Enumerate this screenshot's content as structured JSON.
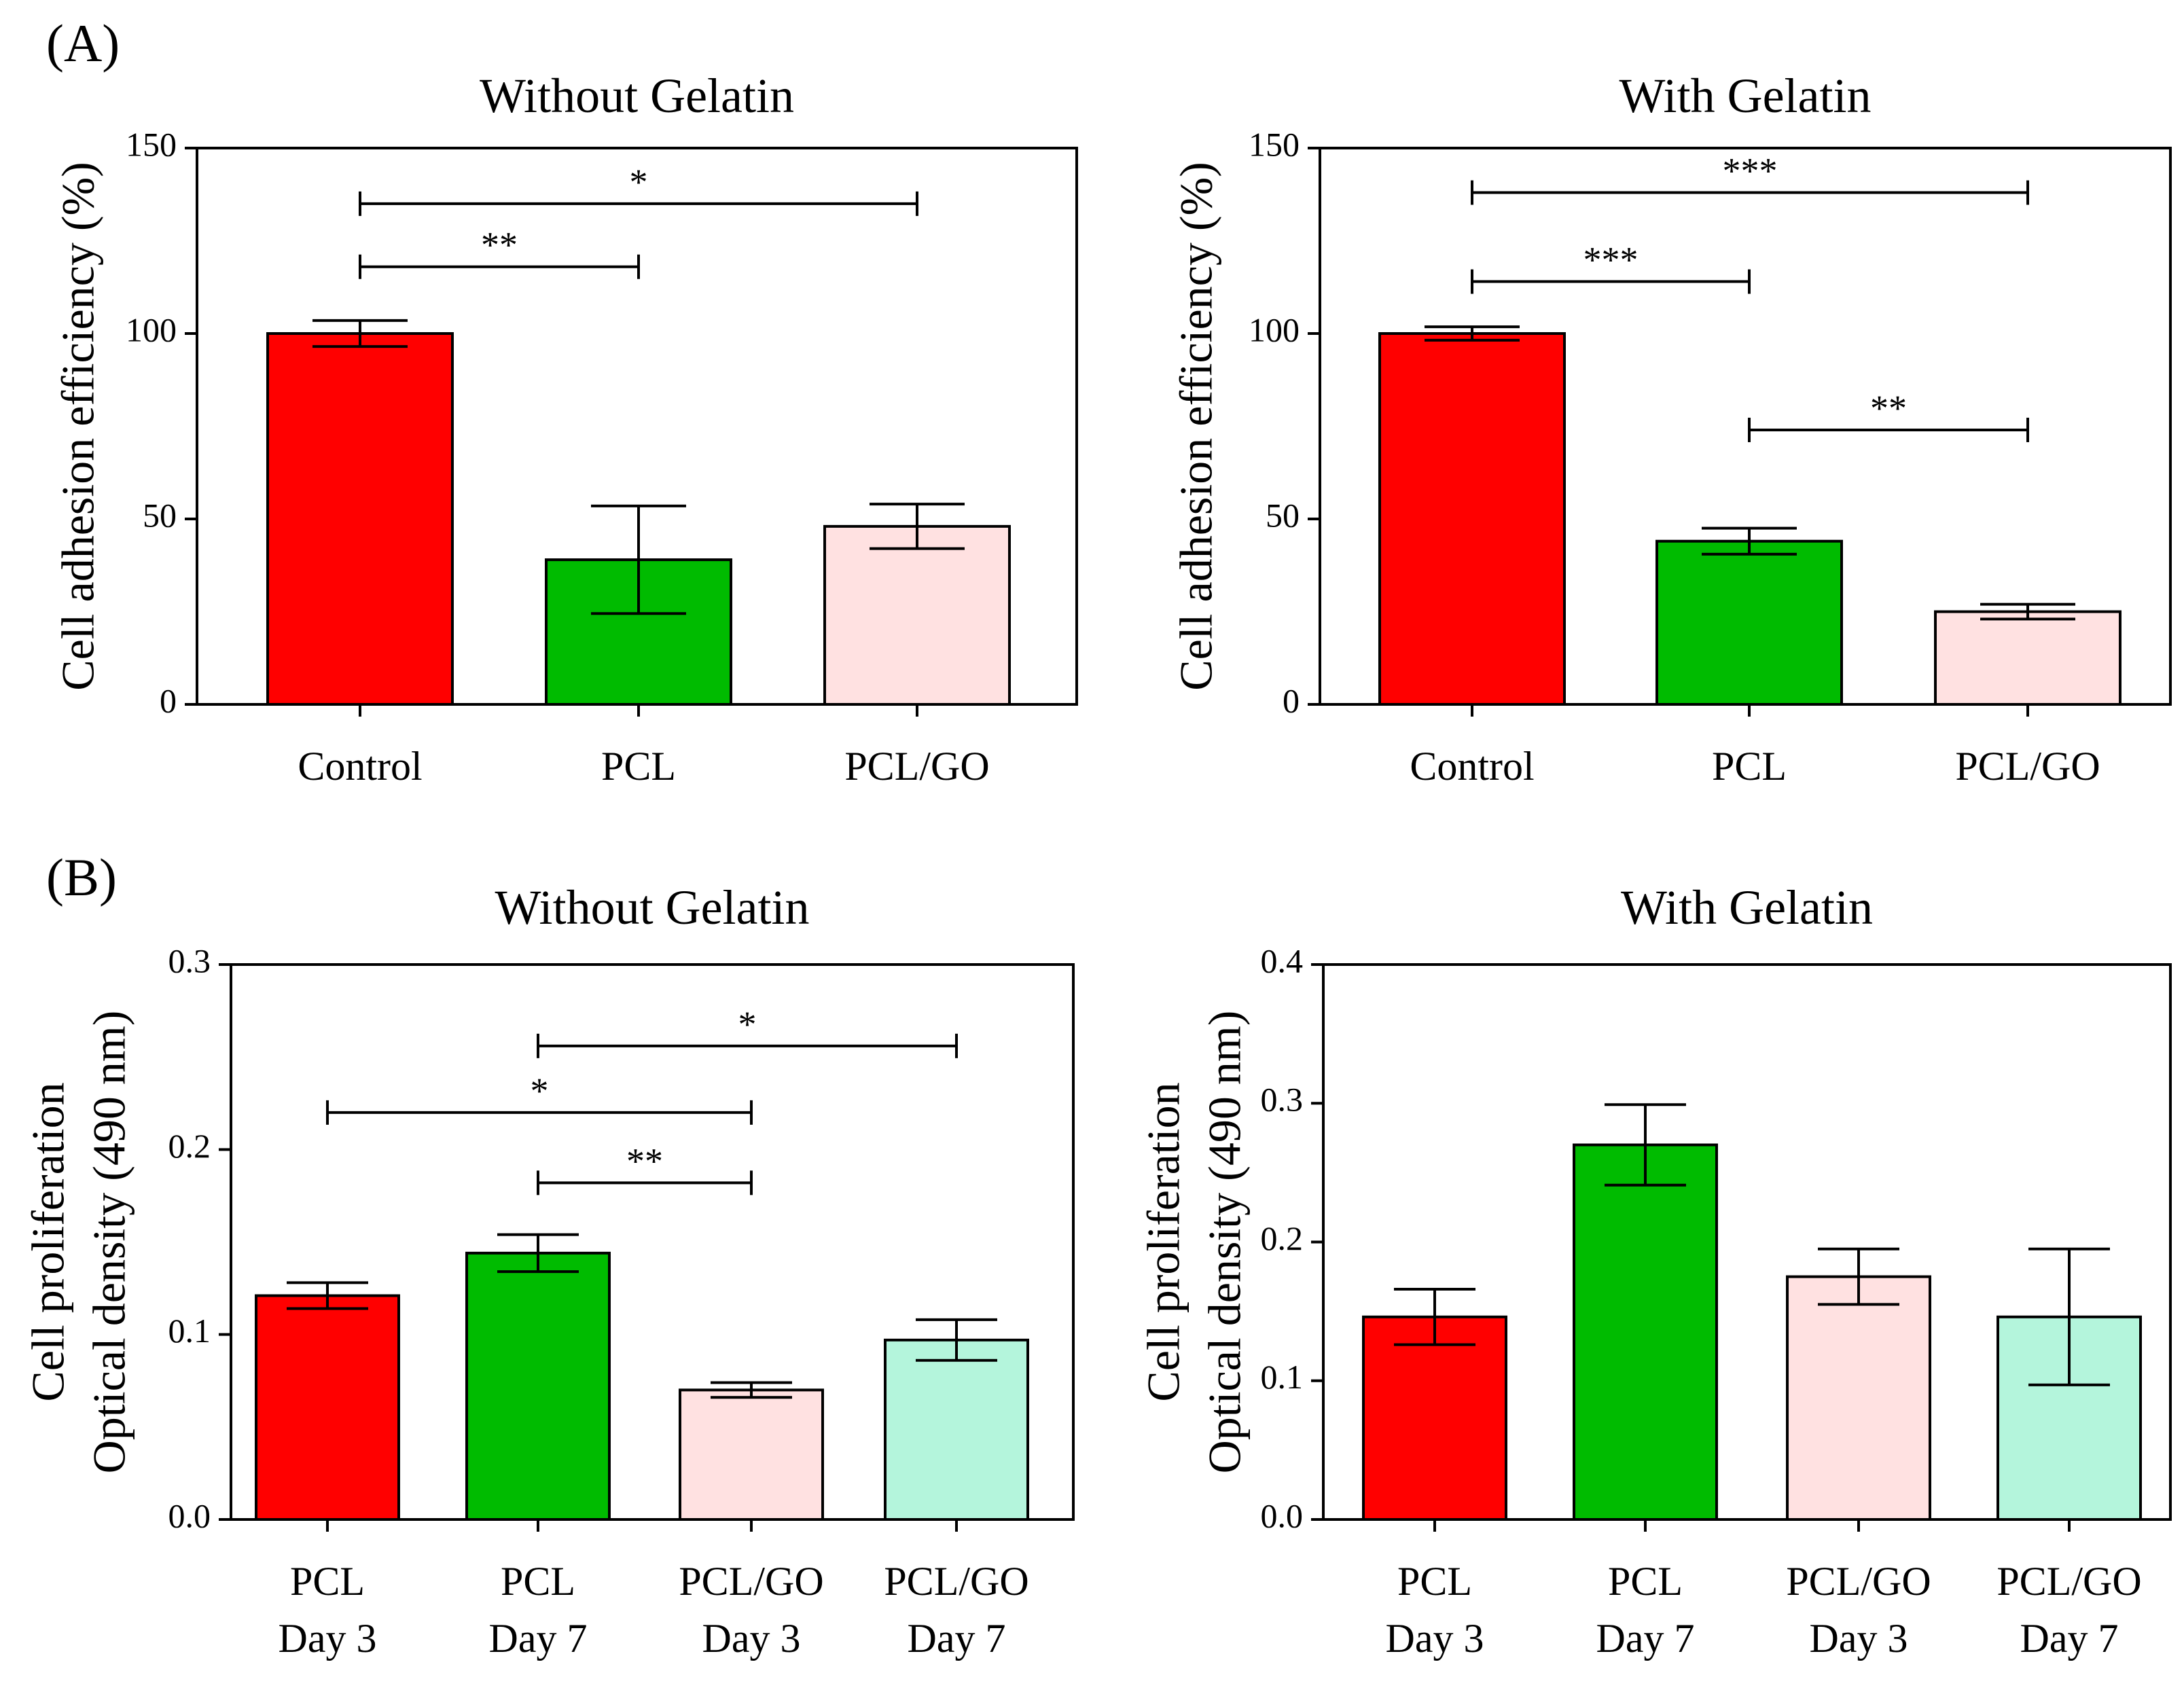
{
  "panel_labels": [
    "(A)",
    "(B)"
  ],
  "chart_data": [
    {
      "type": "bar",
      "title": "Without Gelatin",
      "ylabel": [
        "Cell adhesion efficiency (%)"
      ],
      "ylim": [
        0,
        150
      ],
      "yticks": [
        0,
        50,
        100,
        150
      ],
      "categories": [
        [
          "Control"
        ],
        [
          "PCL"
        ],
        [
          "PCL/GO"
        ]
      ],
      "values": [
        100,
        39,
        48
      ],
      "errors": [
        3.5,
        14.5,
        6
      ],
      "colors": [
        "#ff0000",
        "#00bb00",
        "#ffe1e1"
      ],
      "significance": [
        {
          "from": 0,
          "to": 1,
          "label": "**",
          "y": 118
        },
        {
          "from": 0,
          "to": 2,
          "label": "*",
          "y": 135
        }
      ],
      "legend": "none",
      "grid": false
    },
    {
      "type": "bar",
      "title": "With Gelatin",
      "ylabel": [
        "Cell adhesion efficiency (%)"
      ],
      "ylim": [
        0,
        150
      ],
      "yticks": [
        0,
        50,
        100,
        150
      ],
      "categories": [
        [
          "Control"
        ],
        [
          "PCL"
        ],
        [
          "PCL/GO"
        ]
      ],
      "values": [
        100,
        44,
        25
      ],
      "errors": [
        1.8,
        3.5,
        2
      ],
      "colors": [
        "#ff0000",
        "#00bb00",
        "#ffe1e1"
      ],
      "significance": [
        {
          "from": 0,
          "to": 1,
          "label": "***",
          "y": 114
        },
        {
          "from": 0,
          "to": 2,
          "label": "***",
          "y": 138
        },
        {
          "from": 1,
          "to": 2,
          "label": "**",
          "y": 74
        }
      ],
      "legend": "none",
      "grid": false
    },
    {
      "type": "bar",
      "title": "Without Gelatin",
      "ylabel": [
        "Cell proliferation",
        "Optical density (490 nm)"
      ],
      "ylim": [
        0,
        0.3
      ],
      "yticks": [
        0.0,
        0.1,
        0.2,
        0.3
      ],
      "categories": [
        [
          "PCL",
          "Day 3"
        ],
        [
          "PCL",
          "Day 7"
        ],
        [
          "PCL/GO",
          "Day 3"
        ],
        [
          "PCL/GO",
          "Day 7"
        ]
      ],
      "values": [
        0.121,
        0.144,
        0.07,
        0.097
      ],
      "errors": [
        0.007,
        0.01,
        0.004,
        0.011
      ],
      "colors": [
        "#ff0000",
        "#00bb00",
        "#ffe1e1",
        "#b4f5dc"
      ],
      "significance": [
        {
          "from": 1,
          "to": 2,
          "label": "**",
          "y": 0.182
        },
        {
          "from": 0,
          "to": 2,
          "label": "*",
          "y": 0.22
        },
        {
          "from": 1,
          "to": 3,
          "label": "*",
          "y": 0.256
        }
      ],
      "legend": "none",
      "grid": false
    },
    {
      "type": "bar",
      "title": "With Gelatin",
      "ylabel": [
        "Cell proliferation",
        "Optical density (490 nm)"
      ],
      "ylim": [
        0,
        0.4
      ],
      "yticks": [
        0.0,
        0.1,
        0.2,
        0.3,
        0.4
      ],
      "categories": [
        [
          "PCL",
          "Day 3"
        ],
        [
          "PCL",
          "Day 7"
        ],
        [
          "PCL/GO",
          "Day 3"
        ],
        [
          "PCL/GO",
          "Day 7"
        ]
      ],
      "values": [
        0.146,
        0.27,
        0.175,
        0.146
      ],
      "errors": [
        0.02,
        0.029,
        0.02,
        0.049
      ],
      "colors": [
        "#ff0000",
        "#00bb00",
        "#ffe1e1",
        "#b4f5dc"
      ],
      "significance": [],
      "legend": "none",
      "grid": false
    }
  ]
}
